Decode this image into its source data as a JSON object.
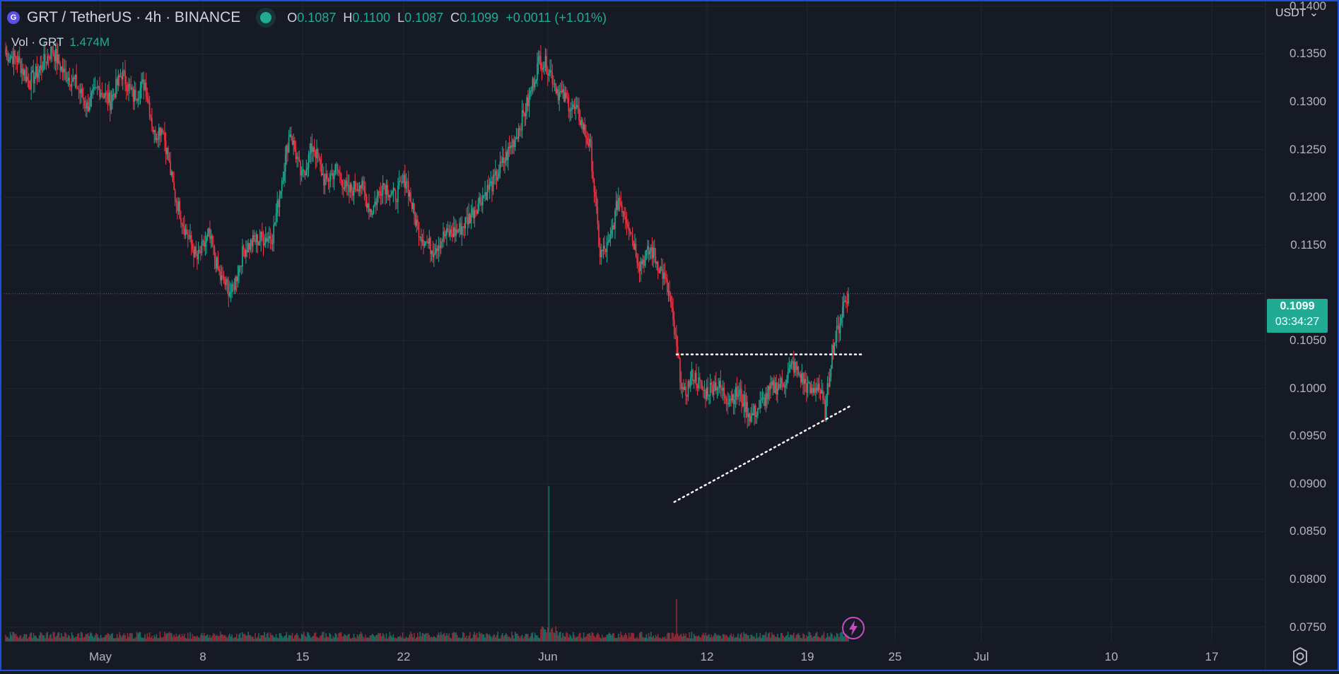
{
  "header": {
    "symbol": "GRT / TetherUS · 4h · BINANCE",
    "logo_glyph": "G",
    "ohlc": {
      "o_label": "O",
      "o_value": "0.1087",
      "h_label": "H",
      "h_value": "0.1100",
      "l_label": "L",
      "l_value": "0.1087",
      "c_label": "C",
      "c_value": "0.1099",
      "change": "+0.0011 (+1.01%)"
    }
  },
  "volume_legend": {
    "label": "Vol · GRT",
    "value": "1.474M"
  },
  "currency_selector": "USDT",
  "last_price": {
    "price": "0.1099",
    "countdown": "03:34:27"
  },
  "colors": {
    "up": "#22ab94",
    "down": "#f23645",
    "background": "#161a25",
    "grid": "#232733",
    "price_line": "#6b4fa0",
    "frame": "#1f4fd8"
  },
  "icons": {
    "settings": "gear-icon",
    "bolt": "lightning-icon"
  },
  "chart_data": {
    "type": "candlestick",
    "title": "GRT / TetherUS · 4h · BINANCE",
    "x_tick_labels": [
      "May",
      "8",
      "15",
      "22",
      "Jun",
      "12",
      "19",
      "25",
      "Jul",
      "10",
      "17"
    ],
    "y_tick_labels": [
      "0.0750",
      "0.0800",
      "0.0850",
      "0.0900",
      "0.0950",
      "0.1000",
      "0.1050",
      "0.1150",
      "0.1200",
      "0.1250",
      "0.1300",
      "0.1350",
      "0.1400"
    ],
    "ylim": [
      0.0735,
      0.1405
    ],
    "last_close": 0.1099,
    "price_path": [
      [
        0,
        0.135
      ],
      [
        10,
        0.1345
      ],
      [
        20,
        0.132
      ],
      [
        30,
        0.1335
      ],
      [
        40,
        0.1355
      ],
      [
        50,
        0.133
      ],
      [
        60,
        0.132
      ],
      [
        70,
        0.1295
      ],
      [
        80,
        0.1315
      ],
      [
        90,
        0.13
      ],
      [
        100,
        0.133
      ],
      [
        110,
        0.1305
      ],
      [
        120,
        0.132
      ],
      [
        128,
        0.1265
      ],
      [
        135,
        0.1275
      ],
      [
        145,
        0.1205
      ],
      [
        155,
        0.1165
      ],
      [
        165,
        0.1135
      ],
      [
        175,
        0.116
      ],
      [
        185,
        0.1115
      ],
      [
        195,
        0.11
      ],
      [
        205,
        0.1145
      ],
      [
        215,
        0.1155
      ],
      [
        230,
        0.116
      ],
      [
        245,
        0.127
      ],
      [
        255,
        0.122
      ],
      [
        265,
        0.1255
      ],
      [
        275,
        0.1215
      ],
      [
        285,
        0.123
      ],
      [
        295,
        0.1205
      ],
      [
        305,
        0.1215
      ],
      [
        315,
        0.1185
      ],
      [
        325,
        0.1215
      ],
      [
        335,
        0.12
      ],
      [
        345,
        0.122
      ],
      [
        352,
        0.118
      ],
      [
        358,
        0.116
      ],
      [
        368,
        0.1145
      ],
      [
        378,
        0.116
      ],
      [
        390,
        0.1165
      ],
      [
        400,
        0.118
      ],
      [
        410,
        0.12
      ],
      [
        420,
        0.1215
      ],
      [
        430,
        0.124
      ],
      [
        440,
        0.1265
      ],
      [
        450,
        0.13
      ],
      [
        460,
        0.1345
      ],
      [
        468,
        0.1335
      ],
      [
        476,
        0.131
      ],
      [
        484,
        0.13
      ],
      [
        494,
        0.1285
      ],
      [
        504,
        0.125
      ],
      [
        512,
        0.114
      ],
      [
        520,
        0.115
      ],
      [
        528,
        0.12
      ],
      [
        536,
        0.1175
      ],
      [
        546,
        0.113
      ],
      [
        556,
        0.1145
      ],
      [
        566,
        0.112
      ],
      [
        572,
        0.1095
      ],
      [
        578,
        0.104
      ],
      [
        584,
        0.099
      ],
      [
        592,
        0.1015
      ],
      [
        602,
        0.0995
      ],
      [
        612,
        0.1005
      ],
      [
        622,
        0.099
      ],
      [
        632,
        0.0995
      ],
      [
        642,
        0.097
      ],
      [
        652,
        0.0985
      ],
      [
        660,
        0.1
      ],
      [
        670,
        0.1005
      ],
      [
        678,
        0.1025
      ],
      [
        686,
        0.101
      ],
      [
        694,
        0.0995
      ],
      [
        700,
        0.1005
      ],
      [
        706,
        0.0975
      ],
      [
        712,
        0.104
      ],
      [
        718,
        0.1065
      ],
      [
        722,
        0.109
      ],
      [
        726,
        0.1099
      ]
    ]
  }
}
